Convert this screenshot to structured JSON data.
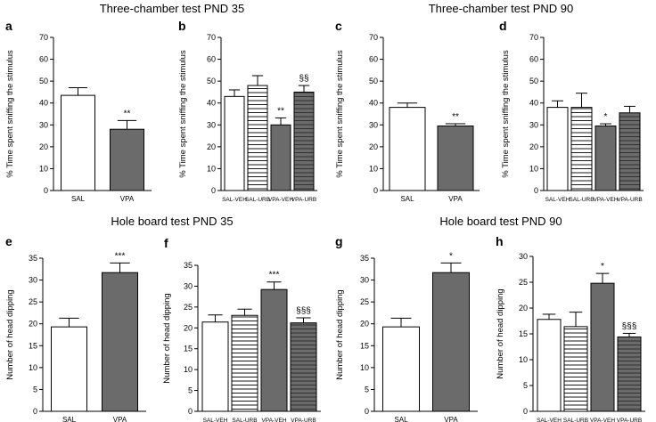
{
  "section_titles": [
    "Three-chamber test PND 35",
    "Three-chamber test PND 90",
    "Hole board test PND 35",
    "Hole board test PND 90"
  ],
  "colors": {
    "white_bar": "#ffffff",
    "dark_bar": "#6b6b6b",
    "axis": "#000000"
  },
  "chart_data": [
    {
      "panel": "a",
      "type": "bar",
      "title": "Three-chamber test PND 35",
      "ylabel": "% Time spent sniffing the stimulus",
      "xlabel": "",
      "ylim": [
        0,
        70
      ],
      "yticks": [
        0,
        10,
        20,
        30,
        40,
        50,
        60,
        70
      ],
      "categories": [
        "SAL",
        "VPA"
      ],
      "values": [
        43.5,
        28
      ],
      "errors": [
        3.5,
        4
      ],
      "fills": [
        "white",
        "dark"
      ],
      "annotations": [
        "",
        "**"
      ]
    },
    {
      "panel": "b",
      "type": "bar",
      "title": "Three-chamber test PND 35",
      "ylabel": "% Time spent sniffing the stimulus",
      "xlabel": "",
      "ylim": [
        0,
        70
      ],
      "yticks": [
        0,
        10,
        20,
        30,
        40,
        50,
        60,
        70
      ],
      "categories": [
        "SAL-VEH",
        "SAL-URB",
        "VPA-VEH",
        "VPA-URB"
      ],
      "values": [
        43,
        48,
        30,
        45
      ],
      "errors": [
        3,
        4.5,
        3.2,
        3
      ],
      "fills": [
        "white",
        "white-striped",
        "dark",
        "dark-striped"
      ],
      "annotations": [
        "",
        "",
        "**",
        "§§"
      ]
    },
    {
      "panel": "c",
      "type": "bar",
      "title": "Three-chamber test PND 90",
      "ylabel": "% Time spent sniffing the stimulus",
      "xlabel": "",
      "ylim": [
        0,
        70
      ],
      "yticks": [
        0,
        10,
        20,
        30,
        40,
        50,
        60,
        70
      ],
      "categories": [
        "SAL",
        "VPA"
      ],
      "values": [
        38,
        29.5
      ],
      "errors": [
        2,
        1
      ],
      "fills": [
        "white",
        "dark"
      ],
      "annotations": [
        "",
        "**"
      ]
    },
    {
      "panel": "d",
      "type": "bar",
      "title": "Three-chamber test PND 90",
      "ylabel": "% Time spent sniffing the stimulus",
      "xlabel": "",
      "ylim": [
        0,
        70
      ],
      "yticks": [
        0,
        10,
        20,
        30,
        40,
        50,
        60,
        70
      ],
      "categories": [
        "SAL-VEH",
        "SAL-URB",
        "VPA-VEH",
        "VPA-URB"
      ],
      "values": [
        38,
        38,
        29.5,
        35.5
      ],
      "errors": [
        3,
        6.5,
        1,
        3
      ],
      "fills": [
        "white",
        "white-striped",
        "dark",
        "dark-striped"
      ],
      "annotations": [
        "",
        "",
        "*",
        ""
      ]
    },
    {
      "panel": "e",
      "type": "bar",
      "title": "Hole board test PND 35",
      "ylabel": "Number of head dipping",
      "xlabel": "",
      "ylim": [
        0,
        35
      ],
      "yticks": [
        0,
        5,
        10,
        15,
        20,
        25,
        30,
        35
      ],
      "categories": [
        "SAL",
        "VPA"
      ],
      "values": [
        19.3,
        31.7
      ],
      "errors": [
        2,
        2.2
      ],
      "fills": [
        "white",
        "dark"
      ],
      "annotations": [
        "",
        "***"
      ]
    },
    {
      "panel": "f",
      "type": "bar",
      "title": "Hole board test PND 35",
      "ylabel": "Number of head dipping",
      "xlabel": "",
      "ylim": [
        0,
        35
      ],
      "yticks": [
        0,
        5,
        10,
        15,
        20,
        25,
        30,
        35
      ],
      "categories": [
        "SAL-VEH",
        "SAL-URB",
        "VPA-VEH",
        "VPA-URB"
      ],
      "values": [
        21.4,
        23,
        29.2,
        21.2
      ],
      "errors": [
        1.7,
        1.5,
        1.8,
        1.2
      ],
      "fills": [
        "white",
        "white-striped",
        "dark",
        "dark-striped"
      ],
      "annotations": [
        "",
        "",
        "***",
        "§§§"
      ]
    },
    {
      "panel": "g",
      "type": "bar",
      "title": "Hole board test PND 90",
      "ylabel": "Number of head dipping",
      "xlabel": "",
      "ylim": [
        0,
        35
      ],
      "yticks": [
        0,
        5,
        10,
        15,
        20,
        25,
        30,
        35
      ],
      "categories": [
        "SAL",
        "VPA"
      ],
      "values": [
        19.3,
        31.7
      ],
      "errors": [
        2,
        2.2
      ],
      "fills": [
        "white",
        "dark"
      ],
      "annotations": [
        "",
        "*"
      ]
    },
    {
      "panel": "h",
      "type": "bar",
      "title": "Hole board test PND 90",
      "ylabel": "Number of head dipping",
      "xlabel": "",
      "ylim": [
        0,
        30
      ],
      "yticks": [
        0,
        5,
        10,
        15,
        20,
        25,
        30
      ],
      "categories": [
        "SAL-VEH",
        "SAL-URB",
        "VPA-VEH",
        "VPA-URB"
      ],
      "values": [
        17.8,
        16.4,
        24.8,
        14.4
      ],
      "errors": [
        1,
        2.8,
        1.9,
        0.7
      ],
      "fills": [
        "white",
        "white-striped",
        "dark",
        "dark-striped"
      ],
      "annotations": [
        "",
        "",
        "*",
        "§§§"
      ]
    }
  ]
}
